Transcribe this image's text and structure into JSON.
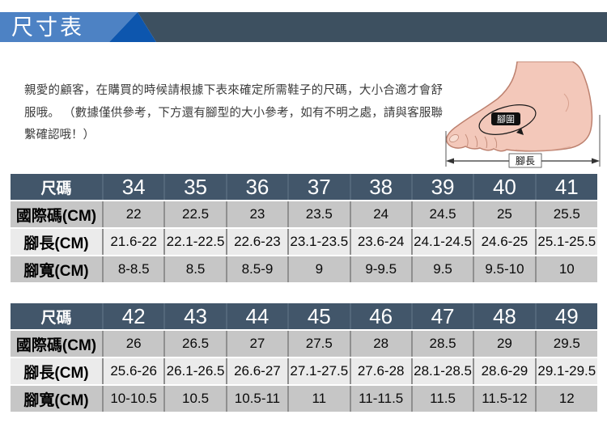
{
  "header": {
    "title": "尺寸表"
  },
  "intro_text": "親愛的顧客，在購買的時候請根據下表來確定所需鞋子的尺碼，大小合適才會舒服哦。 （數據僅供參考，下方還有腳型的大小參考，如有不明之處，請與客服聯繫確認哦！）",
  "foot_diagram": {
    "girth_label": "腳圍",
    "length_label": "腳長"
  },
  "colors": {
    "header_light_blue": "#4d82c4",
    "header_dark_blue": "#0d56ae",
    "header_slate": "#3d5060",
    "table_header_bg": "#42566a",
    "header_cell_divider": "#53677a",
    "row_gray": "#c6c6c6",
    "row_light": "#ebebeb",
    "cell_divider": "#8f8f8f",
    "foot_skin": "#f3c8ba",
    "foot_outline": "#bd816f"
  },
  "tables": [
    {
      "header_label": "尺碼",
      "sizes": [
        "34",
        "35",
        "36",
        "37",
        "38",
        "39",
        "40",
        "41"
      ],
      "rows": [
        {
          "label": "國際碼(CM)",
          "values": [
            "22",
            "22.5",
            "23",
            "23.5",
            "24",
            "24.5",
            "25",
            "25.5"
          ]
        },
        {
          "label": "腳長(CM)",
          "values": [
            "21.6-22",
            "22.1-22.5",
            "22.6-23",
            "23.1-23.5",
            "23.6-24",
            "24.1-24.5",
            "24.6-25",
            "25.1-25.5"
          ]
        },
        {
          "label": "腳寬(CM)",
          "values": [
            "8-8.5",
            "8.5",
            "8.5-9",
            "9",
            "9-9.5",
            "9.5",
            "9.5-10",
            "10"
          ]
        }
      ]
    },
    {
      "header_label": "尺碼",
      "sizes": [
        "42",
        "43",
        "44",
        "45",
        "46",
        "47",
        "48",
        "49"
      ],
      "rows": [
        {
          "label": "國際碼(CM)",
          "values": [
            "26",
            "26.5",
            "27",
            "27.5",
            "28",
            "28.5",
            "29",
            "29.5"
          ]
        },
        {
          "label": "腳長(CM)",
          "values": [
            "25.6-26",
            "26.1-26.5",
            "26.6-27",
            "27.1-27.5",
            "27.6-28",
            "28.1-28.5",
            "28.6-29",
            "29.1-29.5"
          ]
        },
        {
          "label": "腳寬(CM)",
          "values": [
            "10-10.5",
            "10.5",
            "10.5-11",
            "11",
            "11-11.5",
            "11.5",
            "11.5-12",
            "12"
          ]
        }
      ]
    }
  ]
}
